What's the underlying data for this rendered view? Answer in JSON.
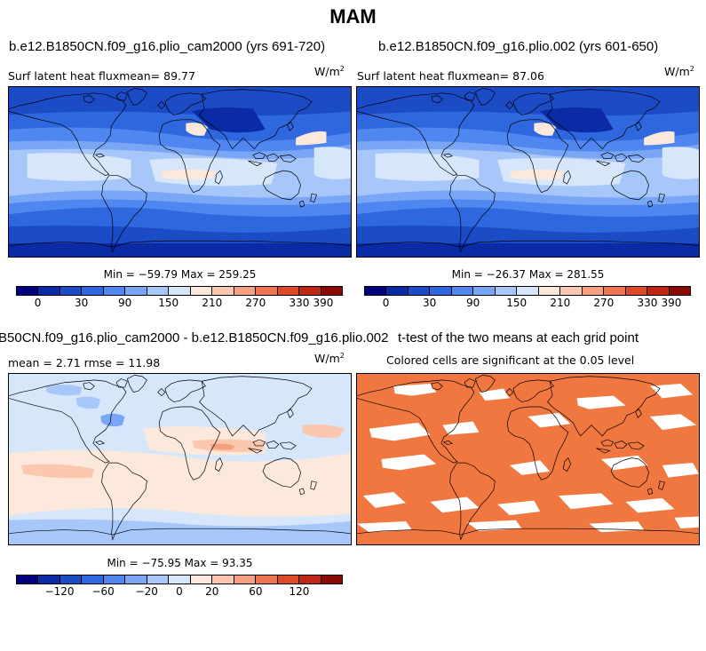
{
  "title": "MAM",
  "panels": [
    {
      "case": "b.e12.B1850CN.f09_g16.plio_cam2000 (yrs 691-720)",
      "left_text": "Surf latent heat fluxmean=  89.77",
      "units_base": "W/m",
      "units_exp": "2",
      "minmax": "Min = −59.79 Max = 259.25"
    },
    {
      "case": "b.e12.B1850CN.f09_g16.plio.002 (yrs 601-650)",
      "left_text": "Surf latent heat fluxmean=  87.06",
      "units_base": "W/m",
      "units_exp": "2",
      "minmax": "Min = −26.37 Max = 281.55"
    },
    {
      "case": "B50CN.f09_g16.plio_cam2000 - b.e12.B1850CN.f09_g16.plio.002",
      "left_text": "mean =    2.71      rmse =   11.98",
      "units_base": "W/m",
      "units_exp": "2",
      "minmax": "Min = −75.95 Max = 93.35"
    },
    {
      "case": "t-test of the two means at each grid point",
      "left_text": "Colored cells are significant at the 0.05 level"
    }
  ],
  "colorbar_abs": {
    "colors": [
      "#00007f",
      "#0a2aa6",
      "#1c4bc6",
      "#2f67de",
      "#4f86ef",
      "#7aa6f6",
      "#a7c6fa",
      "#d6e6fb",
      "#fde8dc",
      "#fbc7ae",
      "#f7a07f",
      "#ee7550",
      "#dd4a28",
      "#c02712",
      "#8c0a04"
    ],
    "tick_labels": [
      "0",
      "30",
      "90",
      "150",
      "210",
      "270",
      "330",
      "390"
    ]
  },
  "colorbar_diff": {
    "colors": [
      "#00007f",
      "#0a2aa6",
      "#1c4bc6",
      "#2f67de",
      "#4f86ef",
      "#7aa6f6",
      "#a7c6fa",
      "#d6e6fb",
      "#fde8dc",
      "#fbc7ae",
      "#f7a07f",
      "#ee7550",
      "#dd4a28",
      "#c02712",
      "#8c0a04"
    ],
    "tick_labels": [
      "−120",
      "−60",
      "−20",
      "0",
      "20",
      "60",
      "120"
    ]
  },
  "chart_data": [
    {
      "type": "heatmap",
      "title": "b.e12.B1850CN.f09_g16.plio_cam2000 (yrs 691-720)",
      "variable": "Surf latent heat flux",
      "mean": 89.77,
      "min": -59.79,
      "max": 259.25,
      "units": "W/m2",
      "contour_levels": [
        0,
        30,
        60,
        90,
        120,
        150,
        180,
        210,
        240,
        270,
        300,
        330,
        360,
        390
      ]
    },
    {
      "type": "heatmap",
      "title": "b.e12.B1850CN.f09_g16.plio.002 (yrs 601-650)",
      "variable": "Surf latent heat flux",
      "mean": 87.06,
      "min": -26.37,
      "max": 281.55,
      "units": "W/m2",
      "contour_levels": [
        0,
        30,
        60,
        90,
        120,
        150,
        180,
        210,
        240,
        270,
        300,
        330,
        360,
        390
      ]
    },
    {
      "type": "heatmap",
      "title": "B50CN.f09_g16.plio_cam2000 - b.e12.B1850CN.f09_g16.plio.002",
      "mean": 2.71,
      "rmse": 11.98,
      "min": -75.95,
      "max": 93.35,
      "units": "W/m2",
      "contour_levels": [
        -120,
        -60,
        -20,
        0,
        20,
        60,
        120
      ]
    },
    {
      "type": "heatmap",
      "title": "t-test of the two means at each grid point",
      "note": "Colored cells are significant at the 0.05 level",
      "significance_level": 0.05
    }
  ]
}
